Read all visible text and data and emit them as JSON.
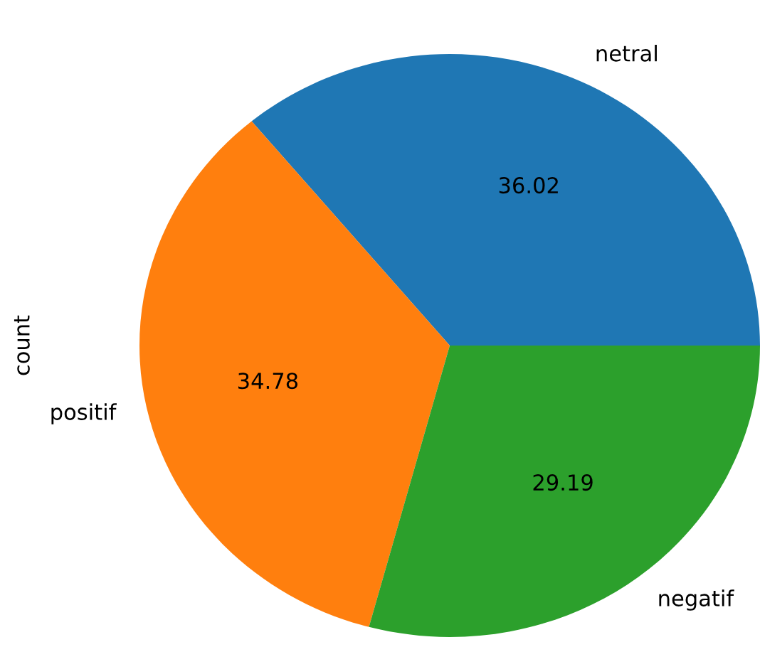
{
  "chart_data": {
    "type": "pie",
    "ylabel": "count",
    "categories": [
      "netral",
      "positif",
      "negatif"
    ],
    "values": [
      36.02,
      34.78,
      29.19
    ],
    "colors": [
      "#1f77b4",
      "#ff7f0e",
      "#2ca02c"
    ],
    "data_labels": true
  }
}
